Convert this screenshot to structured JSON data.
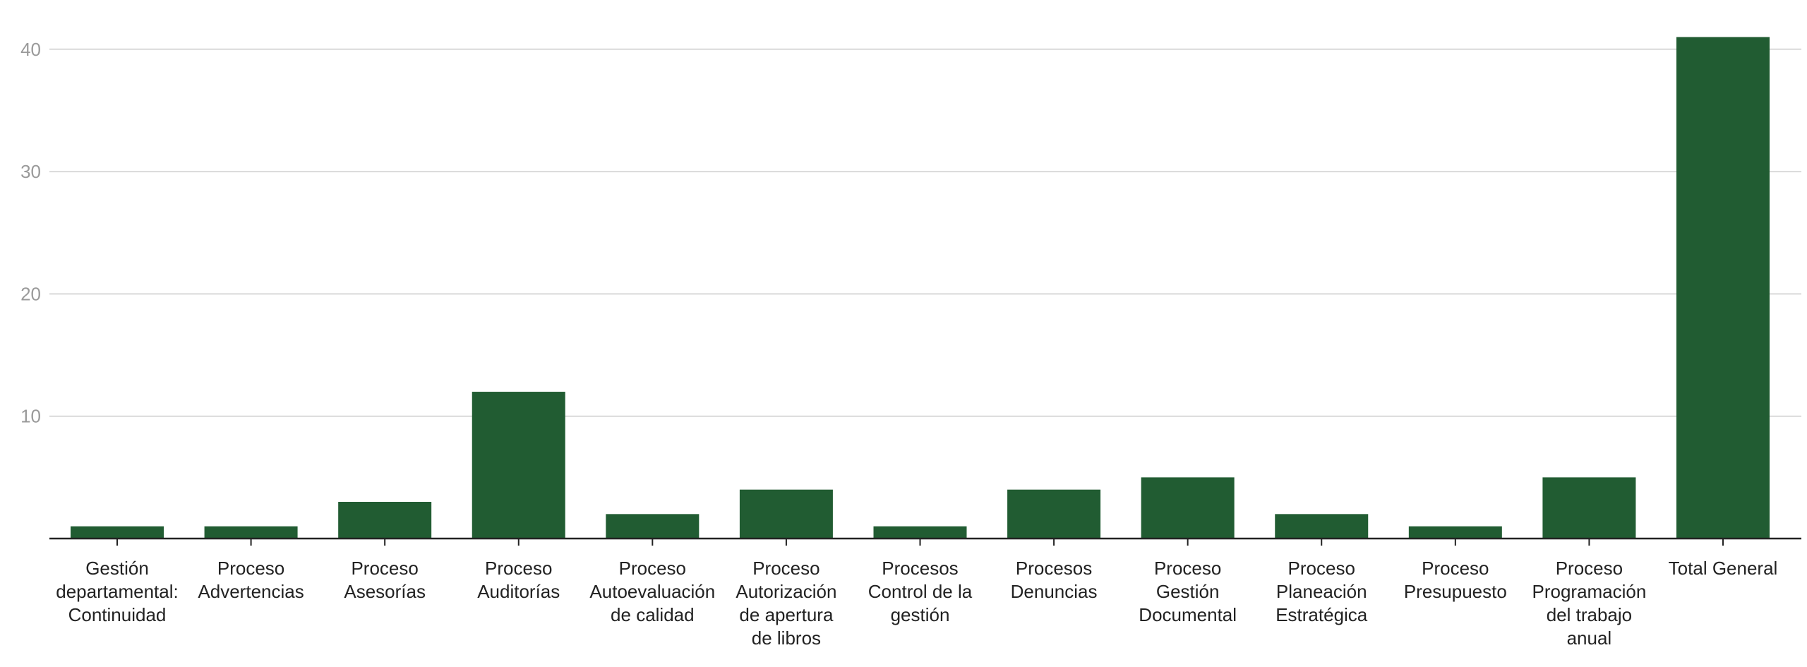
{
  "chart_data": {
    "type": "bar",
    "title": "",
    "xlabel": "",
    "ylabel": "",
    "ylim": [
      0,
      43
    ],
    "yticks": [
      10,
      20,
      30,
      40
    ],
    "grid": true,
    "bar_color": "#215c32",
    "categories": [
      [
        "Gestión",
        "departamental:",
        "Continuidad"
      ],
      [
        "Proceso",
        "Advertencias"
      ],
      [
        "Proceso",
        "Asesorías"
      ],
      [
        "Proceso",
        "Auditorías"
      ],
      [
        "Proceso",
        "Autoevaluación",
        "de calidad"
      ],
      [
        "Proceso",
        "Autorización",
        "de apertura",
        "de libros"
      ],
      [
        "Procesos",
        "Control de la",
        "gestión"
      ],
      [
        "Procesos",
        "Denuncias"
      ],
      [
        "Proceso",
        "Gestión",
        "Documental"
      ],
      [
        "Proceso",
        "Planeación",
        "Estratégica"
      ],
      [
        "Proceso",
        "Presupuesto"
      ],
      [
        "Proceso",
        "Programación",
        "del trabajo",
        "anual"
      ],
      [
        "Total General"
      ]
    ],
    "values": [
      1,
      1,
      3,
      12,
      2,
      4,
      1,
      4,
      5,
      2,
      1,
      5,
      41
    ]
  }
}
